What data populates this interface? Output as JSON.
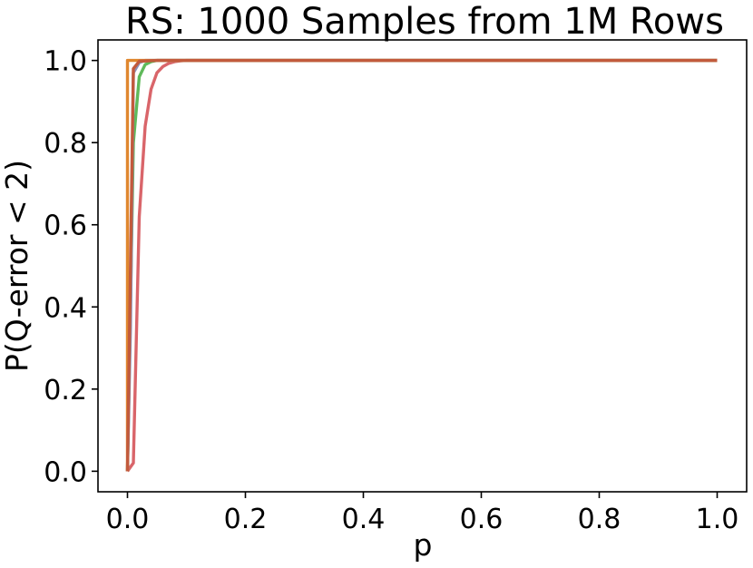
{
  "chart_data": {
    "type": "line",
    "title": "RS: 1000 Samples from 1M Rows",
    "xlabel": "p",
    "ylabel": "P(Q-error < 2)",
    "xlim": [
      -0.05,
      1.05
    ],
    "ylim": [
      -0.05,
      1.05
    ],
    "xticks": [
      "0.0",
      "0.2",
      "0.4",
      "0.6",
      "0.8",
      "1.0"
    ],
    "yticks": [
      "0.0",
      "0.2",
      "0.4",
      "0.6",
      "0.8",
      "1.0"
    ],
    "grid": false,
    "series": [
      {
        "color": "#d9656a",
        "x": [
          0.0,
          0.01,
          0.02,
          0.03,
          0.04,
          0.05,
          0.06,
          0.07,
          0.08,
          0.09,
          0.1,
          0.12,
          1.0
        ],
        "y": [
          0.0,
          0.02,
          0.62,
          0.84,
          0.93,
          0.97,
          0.985,
          0.993,
          0.997,
          0.999,
          1.0,
          1.0,
          1.0
        ]
      },
      {
        "color": "#5fb95a",
        "x": [
          0.0,
          0.01,
          0.02,
          0.03,
          0.04,
          0.05,
          0.06,
          0.08,
          1.0
        ],
        "y": [
          0.0,
          0.8,
          0.96,
          0.99,
          0.997,
          1.0,
          1.0,
          1.0,
          1.0
        ]
      },
      {
        "color": "#8a8fb8",
        "x": [
          0.0,
          0.005,
          0.01,
          0.02,
          0.03,
          1.0
        ],
        "y": [
          0.0,
          0.35,
          0.97,
          0.995,
          1.0,
          1.0
        ]
      },
      {
        "color": "#e0872f",
        "x": [
          0.0,
          0.0,
          0.002,
          1.0
        ],
        "y": [
          0.0,
          1.0,
          1.0,
          1.0
        ]
      },
      {
        "color": "#c25a3c",
        "x": [
          0.0,
          0.01,
          0.02,
          0.05,
          0.1,
          1.0
        ],
        "y": [
          0.0,
          0.98,
          0.998,
          1.0,
          1.0,
          1.0
        ]
      }
    ]
  }
}
